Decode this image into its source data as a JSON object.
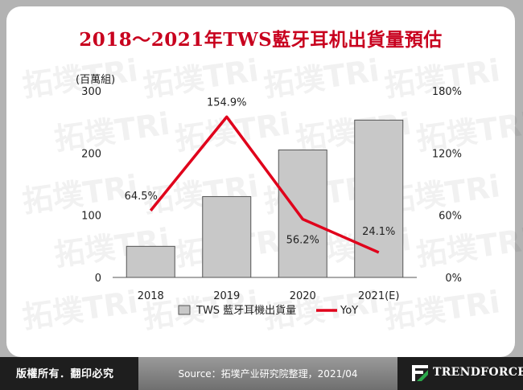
{
  "title": "2018～2021年TWS藍牙耳机出貨量預估",
  "unit_label": "(百萬組)",
  "copyright": "版權所有．翻印必究",
  "source": "Source：拓墣产业研究院整理，2021/04",
  "brand": "TRENDFORCE",
  "watermark": "拓墣TRi",
  "colors": {
    "title": "#c8001e",
    "bar_fill": "#c8c8c8",
    "bar_stroke": "#555555",
    "line": "#e0001b",
    "frame": "#b3b3b3",
    "footer": "#1e1e1e"
  },
  "chart_data": {
    "type": "bar+line",
    "categories": [
      "2018",
      "2019",
      "2020",
      "2021(E)"
    ],
    "series": [
      {
        "name": "TWS 藍牙耳機出貨量",
        "type": "bar",
        "axis": "left",
        "values": [
          50,
          130,
          205,
          253
        ]
      },
      {
        "name": "YoY",
        "type": "line",
        "axis": "right",
        "values": [
          64.5,
          154.9,
          56.2,
          24.1
        ],
        "labels": [
          "64.5%",
          "154.9%",
          "56.2%",
          "24.1%"
        ]
      }
    ],
    "y_left": {
      "range": [
        0,
        300
      ],
      "ticks": [
        "0",
        "100",
        "200",
        "300"
      ]
    },
    "y_right": {
      "range": [
        0,
        180
      ],
      "ticks": [
        "0%",
        "60%",
        "120%",
        "180%"
      ]
    },
    "legend": "bottom"
  }
}
